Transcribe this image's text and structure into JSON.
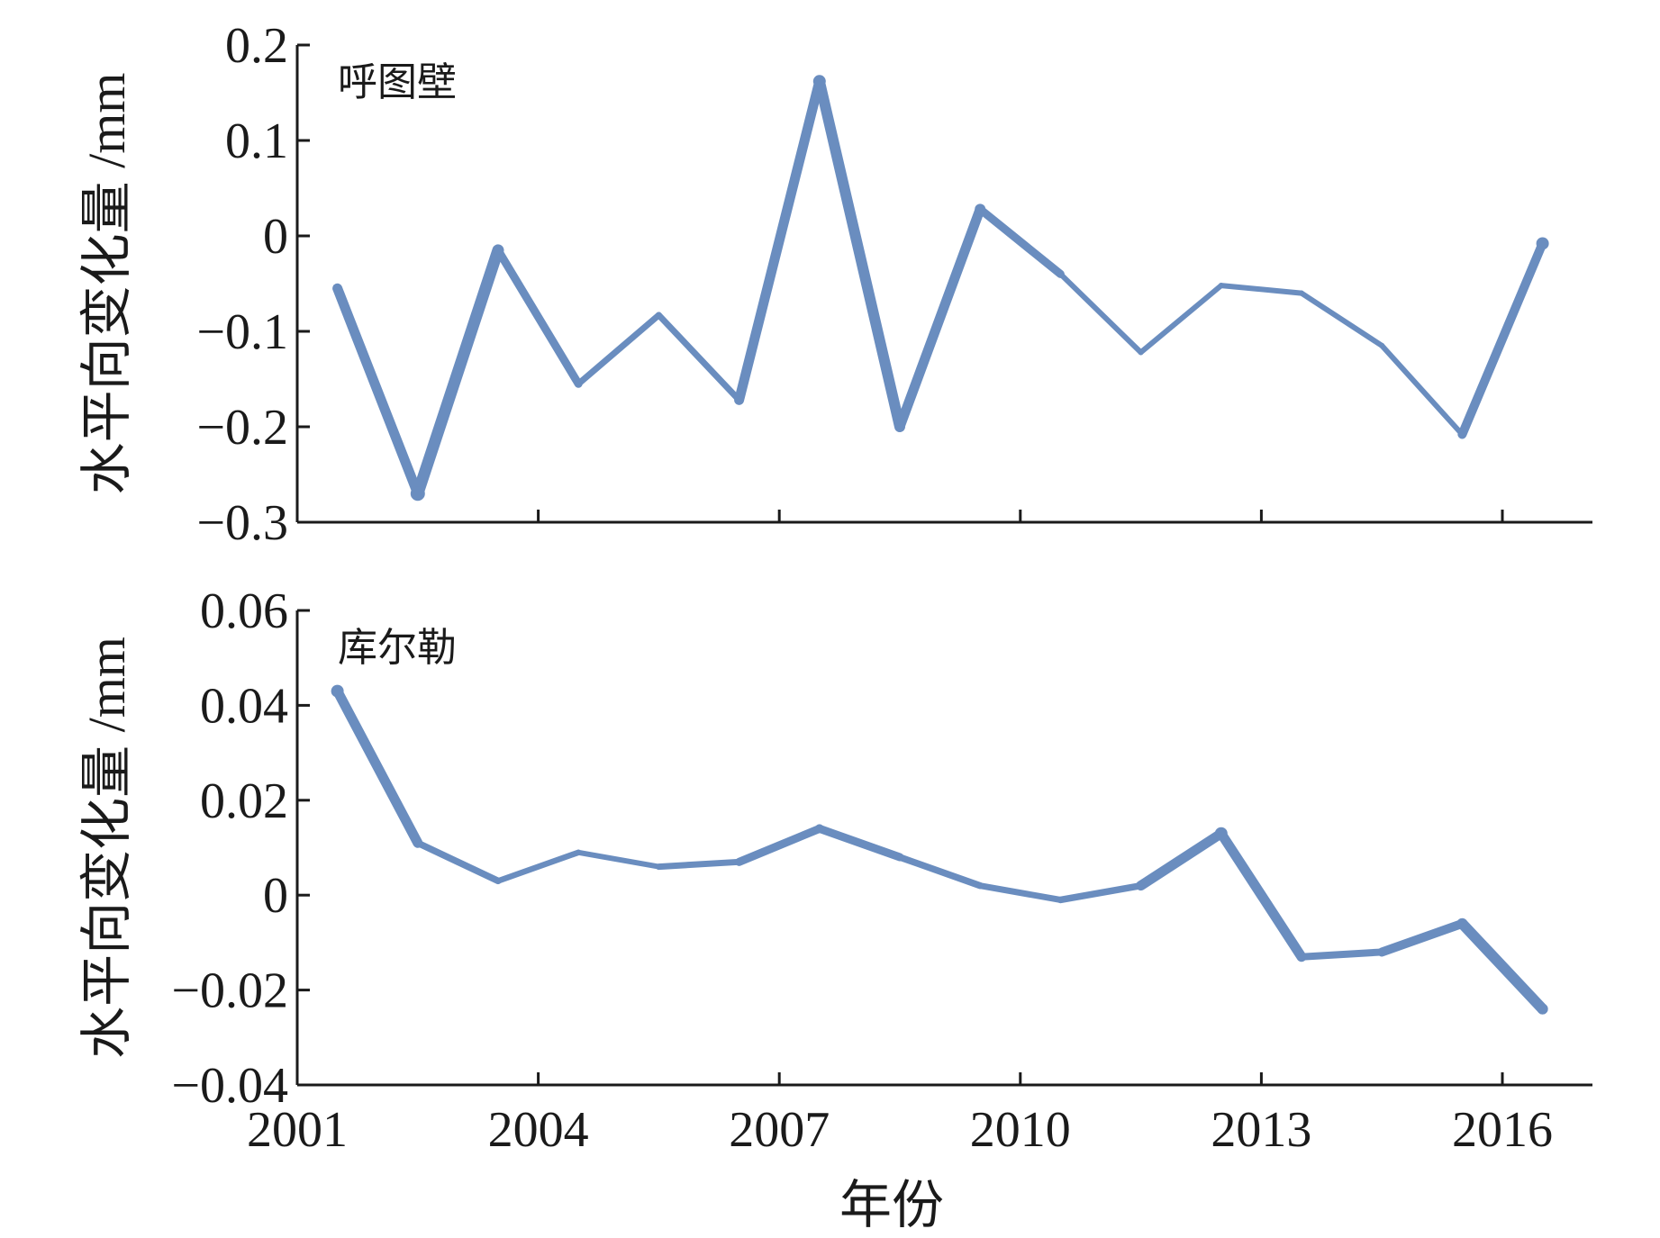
{
  "chart_data": [
    {
      "type": "line",
      "annotation": "呼图壁",
      "ylabel": "水平向变化量 /mm",
      "xlabel": "",
      "x_ticks": [
        "2001",
        "2004",
        "2007",
        "2010",
        "2013",
        "2016"
      ],
      "y_ticks": [
        "0.2",
        "0.1",
        "0",
        "−0.1",
        "−0.2",
        "−0.3"
      ],
      "xlim": [
        2001,
        2017
      ],
      "ylim": [
        -0.3,
        0.2
      ],
      "grid": false,
      "color": "#6a8dbf",
      "series": [
        {
          "x": [
            2001.5,
            2002.5,
            2003.5,
            2004.5,
            2005.5,
            2006.5,
            2007.5,
            2008.5,
            2009.5,
            2010.5,
            2011.5,
            2012.5,
            2013.5,
            2014.5,
            2015.5,
            2016.5
          ],
          "values": [
            -0.055,
            -0.27,
            -0.015,
            -0.155,
            -0.083,
            -0.172,
            0.162,
            -0.2,
            0.028,
            -0.04,
            -0.122,
            -0.052,
            -0.06,
            -0.115,
            -0.208,
            -0.008
          ],
          "line_width": [
            6,
            16,
            10,
            8,
            6,
            8,
            14,
            10,
            12,
            6,
            6,
            6,
            6,
            6,
            6,
            14
          ]
        }
      ]
    },
    {
      "type": "line",
      "annotation": "库尔勒",
      "ylabel": "水平向变化量 /mm",
      "xlabel": "年份",
      "x_ticks": [
        "2001",
        "2004",
        "2007",
        "2010",
        "2013",
        "2016"
      ],
      "y_ticks": [
        "0.06",
        "0.04",
        "0.02",
        "0",
        "−0.02",
        "−0.04"
      ],
      "xlim": [
        2001,
        2017
      ],
      "ylim": [
        -0.04,
        0.06
      ],
      "grid": false,
      "color": "#6a8dbf",
      "series": [
        {
          "x": [
            2001.5,
            2002.5,
            2003.5,
            2004.5,
            2005.5,
            2006.5,
            2007.5,
            2008.5,
            2009.5,
            2010.5,
            2011.5,
            2012.5,
            2013.5,
            2014.5,
            2015.5,
            2016.5
          ],
          "values": [
            0.043,
            0.011,
            0.003,
            0.009,
            0.006,
            0.007,
            0.014,
            0.008,
            0.002,
            -0.001,
            0.002,
            0.013,
            -0.013,
            -0.012,
            -0.006,
            -0.024
          ],
          "line_width": [
            14,
            8,
            7,
            6,
            6,
            8,
            10,
            8,
            7,
            7,
            8,
            14,
            8,
            8,
            12,
            12
          ]
        }
      ]
    }
  ]
}
